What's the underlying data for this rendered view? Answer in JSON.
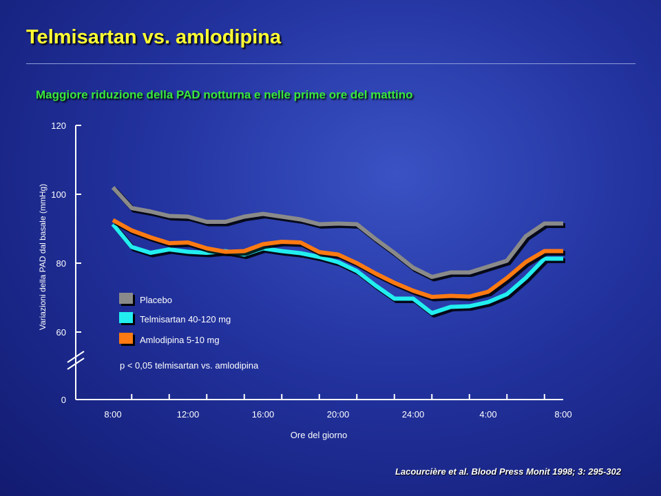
{
  "header": {
    "title": "Telmisartan vs. amlodipina",
    "subtitle": "Maggiore riduzione della PAD notturna e nelle prime ore del mattino"
  },
  "footer": {
    "citation": "Lacourcière et al. Blood Press Monit 1998; 3: 295-302"
  },
  "chart_data": {
    "type": "line",
    "xlabel": "Ore del giorno",
    "ylabel": "Variazioni della PAD dal basale (mmHg)",
    "x_tick_labels": [
      "8:00",
      "12:00",
      "16:00",
      "20:00",
      "24:00",
      "4:00",
      "8:00"
    ],
    "y_ticks": [
      "0",
      "60",
      "80",
      "100",
      "120"
    ],
    "ylim": [
      0,
      120
    ],
    "y_axis_break": true,
    "x_hours_elapsed_range": [
      0,
      24
    ],
    "note": "p < 0,05 telmisartan vs. amlodipina",
    "legend_position": "lower-left",
    "series": [
      {
        "name": "Placebo",
        "color": "#8a8a8a",
        "x": [
          0,
          1,
          2,
          3,
          4,
          5,
          6,
          7,
          8,
          9,
          10,
          11,
          12,
          13,
          14,
          15,
          16,
          17,
          18,
          19,
          20,
          21,
          22,
          23,
          24
        ],
        "values": [
          102,
          96,
          95,
          93.7,
          93.5,
          92,
          92,
          93.5,
          94.3,
          93.5,
          92.7,
          91.3,
          91.5,
          91.3,
          87,
          83,
          78.7,
          76,
          77.3,
          77.3,
          79,
          80.7,
          87.8,
          91.5,
          91.5
        ]
      },
      {
        "name": "Telmisartan 40-120 mg",
        "color": "#22eef0",
        "x": [
          0,
          1,
          2,
          3,
          4,
          5,
          6,
          7,
          8,
          9,
          10,
          11,
          12,
          13,
          14,
          15,
          16,
          17,
          18,
          19,
          20,
          21,
          22,
          23,
          24
        ],
        "values": [
          91.3,
          84.7,
          83,
          84,
          83.3,
          83,
          83.5,
          82.5,
          84.3,
          83.5,
          82.9,
          81.8,
          80.3,
          77.7,
          73.5,
          69.7,
          69.7,
          65.5,
          67.3,
          67.5,
          68.7,
          71,
          75.7,
          81.3,
          81.3
        ]
      },
      {
        "name": "Amlodipina 5-10 mg",
        "color": "#ff7a12",
        "x": [
          0,
          1,
          2,
          3,
          4,
          5,
          6,
          7,
          8,
          9,
          10,
          11,
          12,
          13,
          14,
          15,
          16,
          17,
          18,
          19,
          20,
          21,
          22,
          23,
          24
        ],
        "values": [
          92.5,
          89.5,
          87.5,
          85.8,
          86,
          84.3,
          83.3,
          83.5,
          85.5,
          86.2,
          86,
          83.2,
          82.5,
          80,
          77,
          74.3,
          72,
          70.2,
          70.5,
          70.3,
          71.7,
          75.7,
          80.3,
          83.5,
          83.5
        ]
      }
    ]
  }
}
